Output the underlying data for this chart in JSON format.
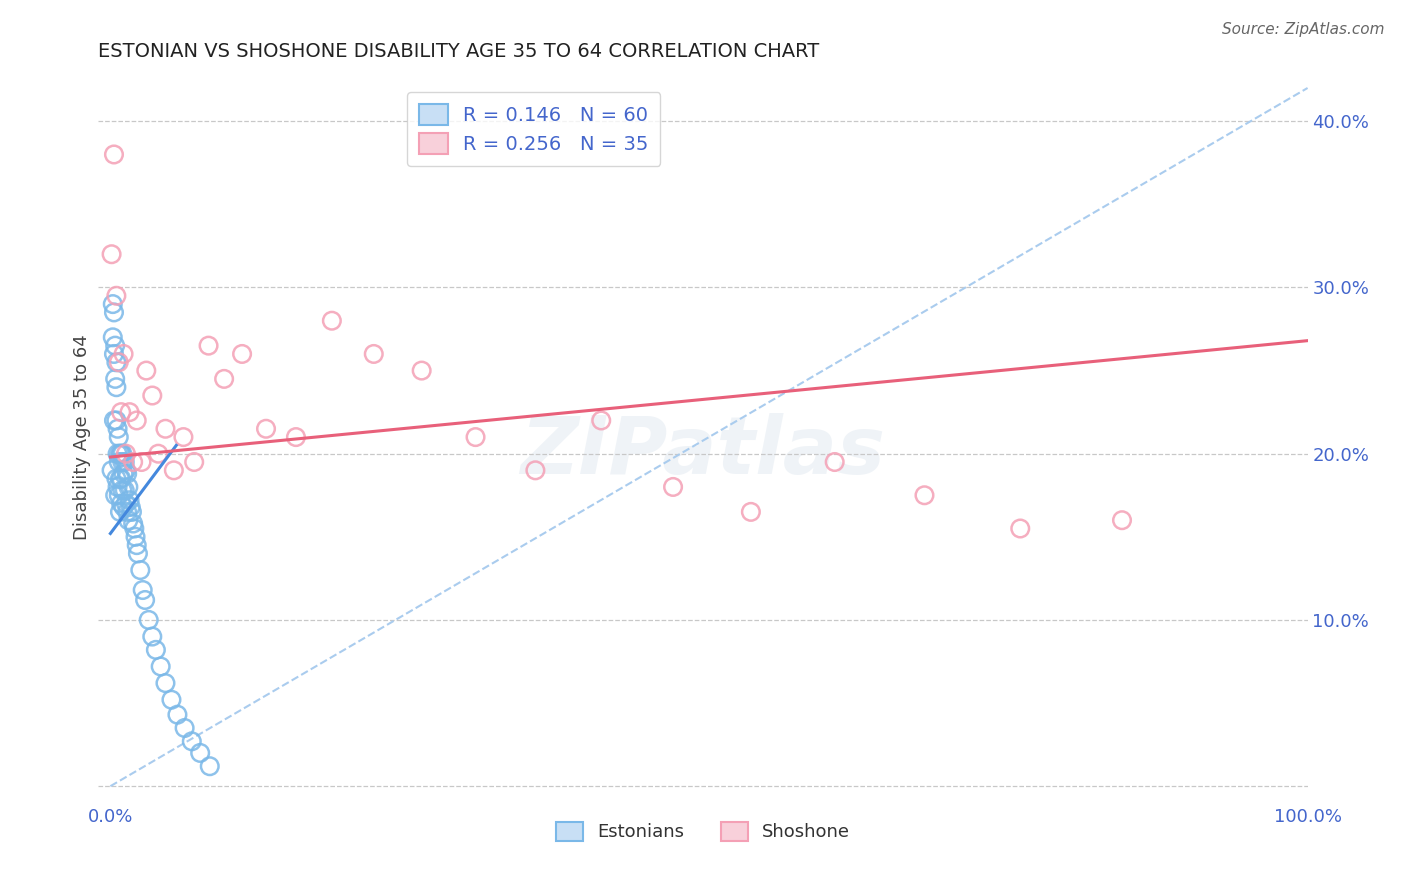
{
  "title": "ESTONIAN VS SHOSHONE DISABILITY AGE 35 TO 64 CORRELATION CHART",
  "source": "Source: ZipAtlas.com",
  "ylabel": "Disability Age 35 to 64",
  "watermark": "ZIPatlas",
  "legend_est": {
    "R": 0.146,
    "N": 60,
    "label": "Estonians"
  },
  "legend_sho": {
    "R": 0.256,
    "N": 35,
    "label": "Shoshone"
  },
  "background_color": "#ffffff",
  "grid_color": "#c8c8c8",
  "est_color": "#7ab8e8",
  "sho_color": "#f4a0b5",
  "est_line_color": "#4488dd",
  "sho_line_color": "#e8607a",
  "diag_color": "#aaccee",
  "title_color": "#222222",
  "tick_color": "#4466cc",
  "est_x": [
    0.001,
    0.002,
    0.002,
    0.003,
    0.003,
    0.003,
    0.004,
    0.004,
    0.004,
    0.005,
    0.005,
    0.005,
    0.005,
    0.006,
    0.006,
    0.006,
    0.007,
    0.007,
    0.007,
    0.008,
    0.008,
    0.008,
    0.009,
    0.009,
    0.009,
    0.01,
    0.01,
    0.01,
    0.011,
    0.011,
    0.012,
    0.012,
    0.013,
    0.013,
    0.014,
    0.014,
    0.015,
    0.015,
    0.016,
    0.017,
    0.018,
    0.019,
    0.02,
    0.021,
    0.022,
    0.023,
    0.025,
    0.027,
    0.029,
    0.032,
    0.035,
    0.038,
    0.042,
    0.046,
    0.051,
    0.056,
    0.062,
    0.068,
    0.075,
    0.083
  ],
  "est_y": [
    0.19,
    0.29,
    0.27,
    0.285,
    0.26,
    0.22,
    0.265,
    0.245,
    0.175,
    0.255,
    0.24,
    0.22,
    0.185,
    0.215,
    0.2,
    0.18,
    0.21,
    0.195,
    0.175,
    0.2,
    0.185,
    0.165,
    0.2,
    0.185,
    0.17,
    0.2,
    0.195,
    0.178,
    0.188,
    0.168,
    0.195,
    0.178,
    0.19,
    0.17,
    0.188,
    0.165,
    0.18,
    0.16,
    0.172,
    0.168,
    0.165,
    0.158,
    0.155,
    0.15,
    0.145,
    0.14,
    0.13,
    0.118,
    0.112,
    0.1,
    0.09,
    0.082,
    0.072,
    0.062,
    0.052,
    0.043,
    0.035,
    0.027,
    0.02,
    0.012
  ],
  "sho_x": [
    0.001,
    0.003,
    0.005,
    0.007,
    0.009,
    0.011,
    0.013,
    0.016,
    0.019,
    0.022,
    0.026,
    0.03,
    0.035,
    0.04,
    0.046,
    0.053,
    0.061,
    0.07,
    0.082,
    0.095,
    0.11,
    0.13,
    0.155,
    0.185,
    0.22,
    0.26,
    0.305,
    0.355,
    0.41,
    0.47,
    0.535,
    0.605,
    0.68,
    0.76,
    0.845
  ],
  "sho_y": [
    0.32,
    0.38,
    0.295,
    0.255,
    0.225,
    0.26,
    0.2,
    0.225,
    0.195,
    0.22,
    0.195,
    0.25,
    0.235,
    0.2,
    0.215,
    0.19,
    0.21,
    0.195,
    0.265,
    0.245,
    0.26,
    0.215,
    0.21,
    0.28,
    0.26,
    0.25,
    0.21,
    0.19,
    0.22,
    0.18,
    0.165,
    0.195,
    0.175,
    0.155,
    0.16
  ],
  "est_line": {
    "x0": 0.0,
    "y0": 0.152,
    "x1": 0.055,
    "y1": 0.205
  },
  "sho_line": {
    "x0": 0.0,
    "y0": 0.198,
    "x1": 1.0,
    "y1": 0.268
  },
  "diag_line": {
    "x0": 0.0,
    "y0": 0.0,
    "x1": 1.0,
    "y1": 0.42
  },
  "xlim": [
    -0.01,
    1.0
  ],
  "ylim": [
    -0.01,
    0.43
  ],
  "xticks": [
    0.0,
    0.2,
    0.4,
    0.6,
    0.8,
    1.0
  ],
  "xtick_labels": [
    "0.0%",
    "",
    "",
    "",
    "",
    "100.0%"
  ],
  "yticks": [
    0.0,
    0.1,
    0.2,
    0.3,
    0.4
  ],
  "ytick_labels_right": [
    "",
    "10.0%",
    "20.0%",
    "30.0%",
    "40.0%"
  ]
}
